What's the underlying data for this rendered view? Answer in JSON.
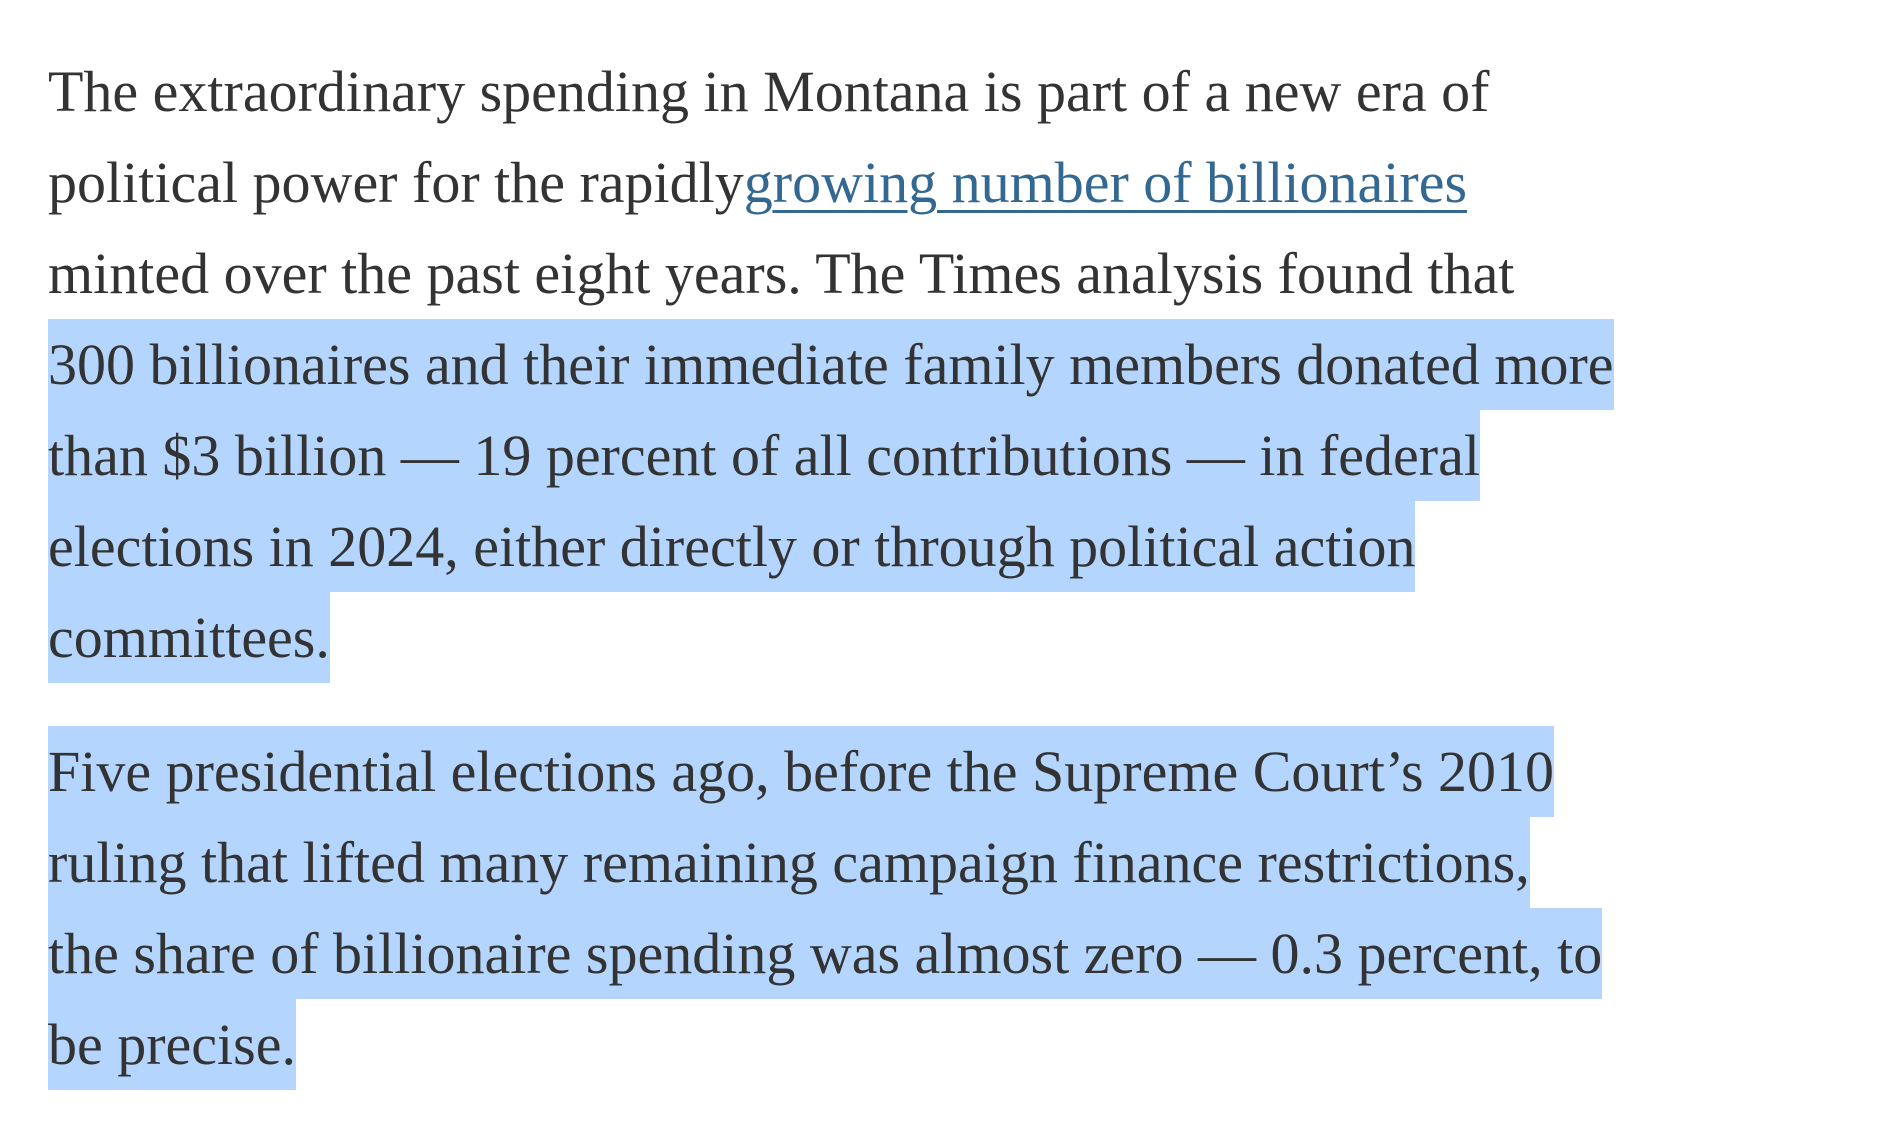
{
  "paragraphs": [
    {
      "lines": [
        [
          {
            "text": "The extraordinary spending in Montana is part of a new era of",
            "style": "plain"
          }
        ],
        [
          {
            "text": "political power for the rapidly ",
            "style": "plain"
          },
          {
            "text": "growing number of billionaires",
            "style": "link"
          }
        ],
        [
          {
            "text": "minted over the past eight years. The Times analysis found that",
            "style": "plain"
          }
        ],
        [
          {
            "text": "300 billionaires and their immediate family members donated more",
            "style": "selected"
          }
        ],
        [
          {
            "text": "than $3 billion — 19 percent of all contributions — in federal",
            "style": "selected"
          }
        ],
        [
          {
            "text": "elections in 2024, either directly or through political action",
            "style": "selected"
          }
        ],
        [
          {
            "text": "committees.",
            "style": "selected"
          }
        ]
      ]
    },
    {
      "lines": [
        [
          {
            "text": "Five presidential elections ago, before the Supreme Court’s 2010",
            "style": "selected"
          }
        ],
        [
          {
            "text": "ruling that lifted many remaining campaign finance restrictions,",
            "style": "selected"
          }
        ],
        [
          {
            "text": "the share of billionaire spending was almost zero — 0.3 percent, to",
            "style": "selected"
          }
        ],
        [
          {
            "text": "be precise.",
            "style": "selected"
          }
        ]
      ]
    }
  ]
}
